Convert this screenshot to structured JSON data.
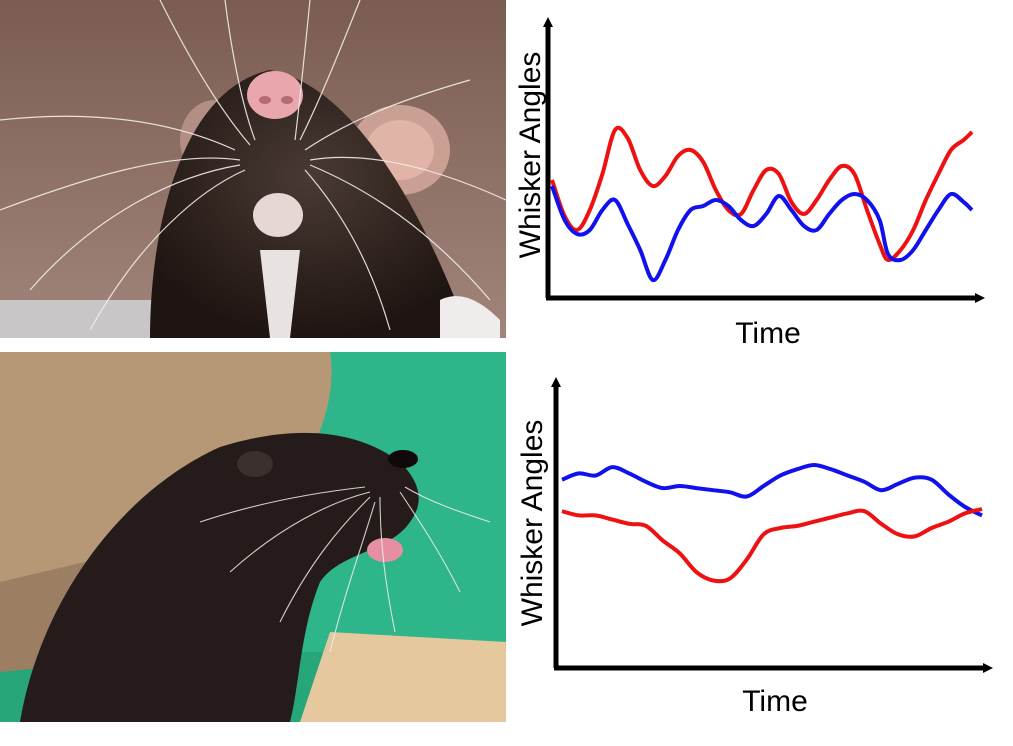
{
  "panels": [
    {
      "photo": "rat-face-photo",
      "chart_index": 0
    },
    {
      "photo": "sea-lion-face-photo",
      "chart_index": 1
    }
  ],
  "colors": {
    "red_series": "#ee1111",
    "blue_series": "#1111ee",
    "axis": "#000000"
  },
  "chart_data": [
    {
      "type": "line",
      "title": "",
      "xlabel": "Time",
      "ylabel": "Whisker Angles",
      "xlim": [
        0,
        100
      ],
      "ylim": [
        0,
        100
      ],
      "grid": false,
      "legend": "none",
      "series": [
        {
          "color": "#ee1111",
          "x": [
            0,
            3,
            6,
            9,
            12,
            15,
            18,
            21,
            24,
            27,
            30,
            33,
            36,
            39,
            42,
            45,
            48,
            51,
            54,
            57,
            60,
            63,
            66,
            69,
            72,
            75,
            78,
            80,
            83,
            86,
            89,
            92,
            95,
            98,
            100
          ],
          "y": [
            55,
            37,
            30,
            40,
            58,
            80,
            76,
            60,
            52,
            57,
            67,
            70,
            64,
            50,
            40,
            38,
            50,
            60,
            58,
            44,
            38,
            45,
            55,
            62,
            58,
            40,
            23,
            15,
            20,
            30,
            45,
            58,
            70,
            75,
            79
          ]
        },
        {
          "color": "#1111ee",
          "x": [
            0,
            3,
            6,
            9,
            12,
            15,
            18,
            21,
            24,
            27,
            30,
            33,
            36,
            39,
            42,
            45,
            48,
            51,
            54,
            57,
            60,
            63,
            66,
            69,
            72,
            75,
            78,
            80,
            83,
            86,
            89,
            92,
            95,
            98,
            100
          ],
          "y": [
            52,
            35,
            28,
            30,
            40,
            45,
            33,
            20,
            5,
            15,
            30,
            40,
            42,
            45,
            42,
            35,
            32,
            38,
            47,
            40,
            32,
            30,
            38,
            45,
            48,
            45,
            35,
            18,
            15,
            20,
            30,
            40,
            48,
            44,
            40
          ]
        }
      ]
    },
    {
      "type": "line",
      "title": "",
      "xlabel": "Time",
      "ylabel": "Whisker Angles",
      "xlim": [
        0,
        100
      ],
      "ylim": [
        0,
        100
      ],
      "grid": false,
      "legend": "none",
      "series": [
        {
          "color": "#1111ee",
          "x": [
            0,
            4,
            8,
            12,
            16,
            20,
            24,
            28,
            32,
            36,
            40,
            44,
            48,
            52,
            56,
            60,
            64,
            68,
            72,
            76,
            80,
            84,
            88,
            92,
            96,
            100
          ],
          "y": [
            73,
            76,
            75,
            79,
            76,
            72,
            69,
            70,
            69,
            68,
            67,
            65,
            70,
            75,
            78,
            80,
            78,
            75,
            72,
            68,
            71,
            74,
            73,
            66,
            60,
            56
          ]
        },
        {
          "color": "#1111ee",
          "x": [],
          "y": []
        },
        {
          "color": "#ee1111",
          "x": [
            0,
            4,
            8,
            12,
            16,
            20,
            24,
            28,
            32,
            36,
            40,
            44,
            48,
            52,
            56,
            60,
            64,
            68,
            72,
            76,
            80,
            84,
            88,
            92,
            96,
            100
          ],
          "y": [
            58,
            56,
            56,
            54,
            52,
            51,
            44,
            38,
            29,
            25,
            26,
            35,
            47,
            50,
            51,
            53,
            55,
            57,
            58,
            52,
            47,
            46,
            50,
            53,
            57,
            59
          ]
        }
      ]
    }
  ]
}
